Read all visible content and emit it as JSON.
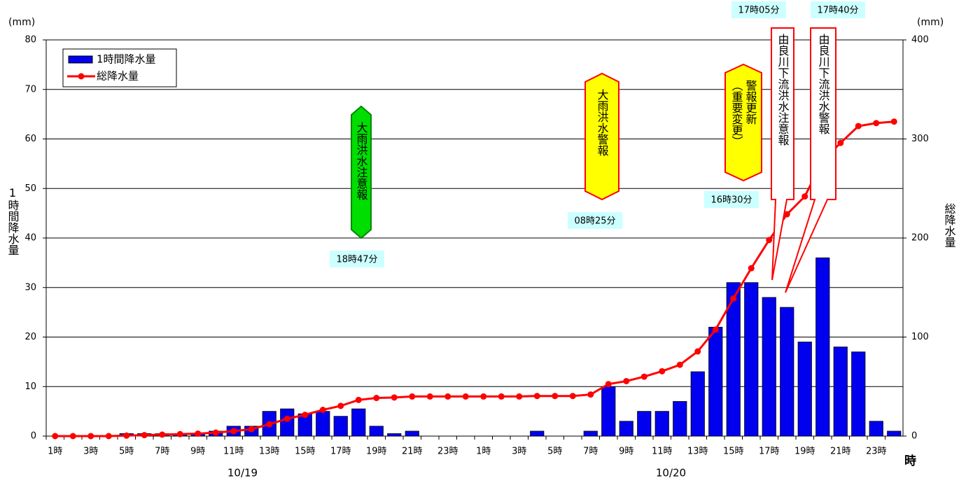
{
  "chart_data": {
    "type": "bar",
    "y_unit": "(mm)",
    "y2_unit": "(mm)",
    "ylabel": "1時間降水量",
    "y2label": "総降水量",
    "xlabel": "時",
    "date_labels": [
      "10/19",
      "10/20"
    ],
    "categories": [
      "1時",
      null,
      "3時",
      null,
      "5時",
      null,
      "7時",
      null,
      "9時",
      null,
      "11時",
      null,
      "13時",
      null,
      "15時",
      null,
      "17時",
      null,
      "19時",
      null,
      "21時",
      null,
      "23時",
      null,
      "1時",
      null,
      "3時",
      null,
      "5時",
      null,
      "7時",
      null,
      "9時",
      null,
      "11時",
      null,
      "13時",
      null,
      "15時",
      null,
      "17時",
      null,
      "19時",
      null,
      "21時",
      null,
      "23時",
      null
    ],
    "series": [
      {
        "name": "1時間降水量",
        "color": "#0000ee",
        "type": "bar",
        "axis": "y",
        "values": [
          0,
          0,
          0,
          0,
          0.5,
          0.5,
          0.5,
          0.5,
          0.5,
          1,
          2,
          2,
          5,
          5.5,
          4.5,
          5,
          4,
          5.5,
          2,
          0.5,
          1,
          0,
          0,
          0,
          0,
          0,
          0,
          1,
          0,
          0,
          1,
          10,
          3,
          5,
          5,
          7,
          13,
          22,
          31,
          31,
          28,
          26,
          19,
          36,
          18,
          17,
          3,
          1
        ]
      },
      {
        "name": "総降水量",
        "color": "#ff0000",
        "type": "line",
        "axis": "y2",
        "values": [
          0,
          0,
          0,
          0,
          0.5,
          1,
          1.5,
          2,
          2.5,
          3.5,
          5,
          7,
          12,
          17.5,
          21.5,
          26.5,
          30.5,
          36.5,
          38.5,
          39,
          40,
          40,
          40,
          40,
          40,
          40,
          40,
          40.5,
          40.5,
          40.5,
          42,
          52.5,
          55.5,
          60,
          65.5,
          72,
          85.5,
          107.5,
          139,
          169.5,
          198,
          224,
          242,
          278,
          296,
          313,
          316,
          317.5
        ]
      }
    ],
    "ylim": [
      0,
      80
    ],
    "yticks": [
      0,
      10,
      20,
      30,
      40,
      50,
      60,
      70,
      80
    ],
    "y2lim": [
      0,
      400
    ],
    "y2ticks": [
      0,
      100,
      200,
      300,
      400
    ],
    "grid": true,
    "legend": "upper left",
    "annotations": [
      {
        "lines": [
          "大雨洪水注意報"
        ],
        "time": "18時47分",
        "color": "#00dd00"
      },
      {
        "lines": [
          "大雨洪水警報"
        ],
        "time": "08時25分",
        "color": "#ffff00"
      },
      {
        "lines": [
          "警報更新",
          "（重要変更）"
        ],
        "time": "16時30分",
        "color": "#ffff00"
      },
      {
        "lines": [
          "由良川下流洪水注意報"
        ],
        "time": "17時05分",
        "color": "#ffffff"
      },
      {
        "lines": [
          "由良川下流洪水警報"
        ],
        "time": "17時40分",
        "color": "#ffffff"
      }
    ]
  }
}
